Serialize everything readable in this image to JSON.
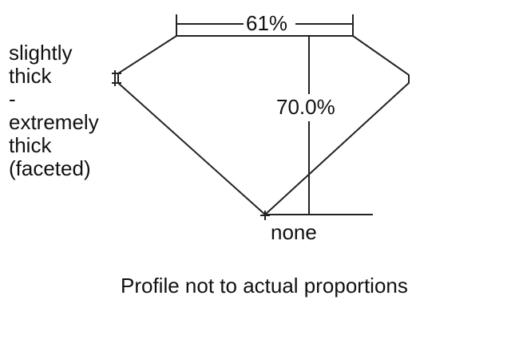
{
  "girdle_label": [
    "slightly",
    "thick",
    "-",
    "extremely",
    "thick",
    "(faceted)"
  ],
  "table_percent": "61%",
  "depth_percent": "70.0%",
  "culet_label": "none",
  "caption": "Profile not to actual proportions"
}
